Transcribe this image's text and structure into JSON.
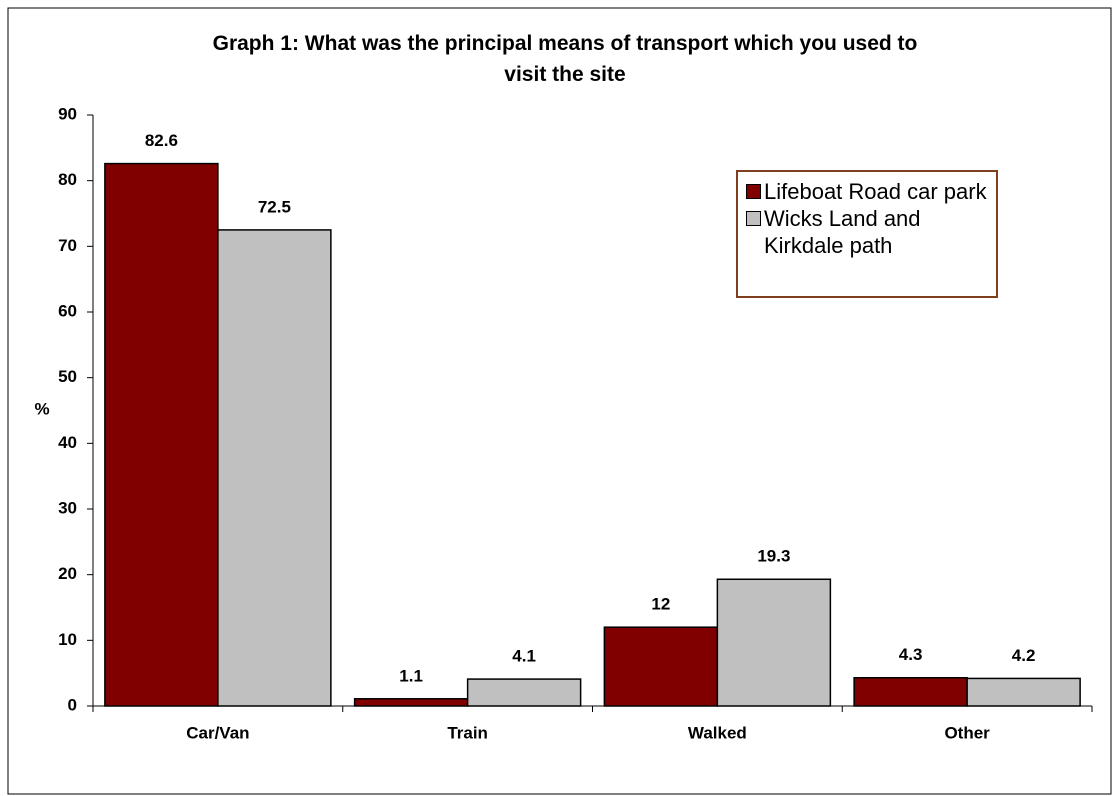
{
  "chart_data": {
    "type": "bar",
    "title": "Graph 1: What was the principal means of transport which you used to visit the site",
    "ylabel": "%",
    "categories": [
      "Car/Van",
      "Train",
      "Walked",
      "Other"
    ],
    "series": [
      {
        "name": "Lifeboat Road car park",
        "color": "#800000",
        "values": [
          82.6,
          1.1,
          12,
          4.3
        ]
      },
      {
        "name": "Wicks Land and Kirkdale path",
        "color": "#c0c0c0",
        "values": [
          72.5,
          4.1,
          19.3,
          4.2
        ]
      }
    ],
    "ylim": [
      0,
      90
    ],
    "yticks": [
      0,
      10,
      20,
      30,
      40,
      50,
      60,
      70,
      80,
      90
    ],
    "grid": false,
    "legend": "upper right"
  }
}
